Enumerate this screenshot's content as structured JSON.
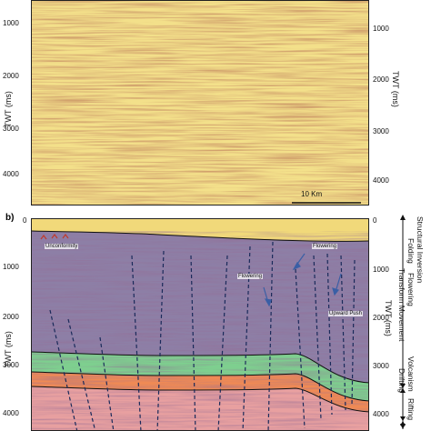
{
  "panel_a": {
    "left_ticks": [
      "1000",
      "2000",
      "3000",
      "4000"
    ],
    "right_ticks": [
      "1000",
      "2000",
      "3000",
      "4000"
    ],
    "left_axis_title": "TWT (ms)",
    "right_axis_title": "TWT (ms)",
    "scale_bar_label": "10 Km"
  },
  "panel_b": {
    "letter": "b)",
    "left_ticks": [
      "0",
      "1000",
      "2000",
      "3000",
      "4000"
    ],
    "right_ticks": [
      "0",
      "1000",
      "2000",
      "3000",
      "4000"
    ],
    "left_axis_title": "TWT (ms)",
    "right_axis_title": "TWT (ms)",
    "annotations": {
      "unconformity": "Unconformity",
      "flowering_1": "Flowering",
      "flowering_2": "Flowering",
      "upward_push": "Upward Push"
    },
    "phases": {
      "structural_inversion": "Structural Inversion",
      "folding": "Folding",
      "transform_movement": "Transform Movement",
      "flowering": "Flowering",
      "volcanism": "Volcanism",
      "drifting": "Drifting",
      "rifting": "Rifting"
    },
    "layer_colors": {
      "top_band": "#f1d97a",
      "upper_sequence": "#8d7fa6",
      "green": "#7ecf8f",
      "orange": "#ef8a55",
      "pink": "#e8a0a0"
    }
  }
}
